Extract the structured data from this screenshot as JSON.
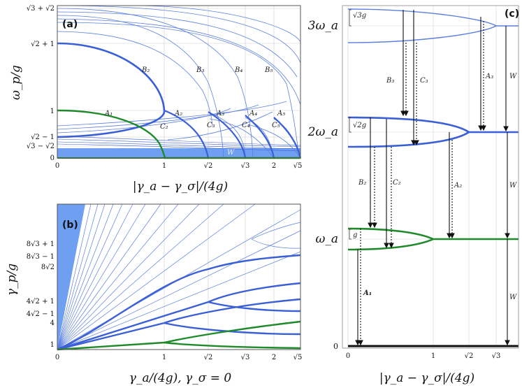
{
  "panel_a": {
    "label": "(a)",
    "ylabel": "ω_p/g",
    "xlabel": "|γ_a − γ_σ|/(4g)",
    "xticks": [
      "0",
      "1",
      "√2",
      "√3",
      "2",
      "√5"
    ],
    "yticks": [
      "√3 + √2",
      "√2 + 1",
      "1",
      "√2 − 1",
      "√3 − √2",
      "0"
    ],
    "curve_labels": [
      "B₂",
      "B₃",
      "B₄",
      "B₅",
      "A₁",
      "A₂",
      "A₃",
      "A₄",
      "A₅",
      "C₂",
      "C₃",
      "C₄",
      "C₅",
      "W"
    ]
  },
  "panel_b": {
    "label": "(b)",
    "ylabel": "γ_p/g",
    "xlabel": "γ_a/(4g), γ_σ = 0",
    "xticks": [
      "0",
      "1",
      "√2",
      "√3",
      "2",
      "√5"
    ],
    "yticks": [
      "8√3 + 1",
      "8√3 − 1",
      "8√2",
      "4√2 + 1",
      "4√2 − 1",
      "4",
      "1"
    ]
  },
  "panel_c": {
    "label": "(c)",
    "xlabel": "|γ_a − γ_σ|/(4g)",
    "xticks": [
      "0",
      "1",
      "√2",
      "√3"
    ],
    "levels": [
      "3ω_a",
      "2ω_a",
      "ω_a",
      "0"
    ],
    "gaps": [
      "√3g",
      "√2g",
      "g"
    ],
    "arrow_labels": [
      "B₃",
      "C₃",
      "A₃",
      "W",
      "B₂",
      "C₂",
      "A₂",
      "W",
      "A₁",
      "W"
    ]
  },
  "colors": {
    "blue": "#3a5fd6",
    "thin_blue": "#5a7fe0",
    "green": "#1f8a2a",
    "fill": "#6f9ff0",
    "grid": "#c8c8c8"
  }
}
